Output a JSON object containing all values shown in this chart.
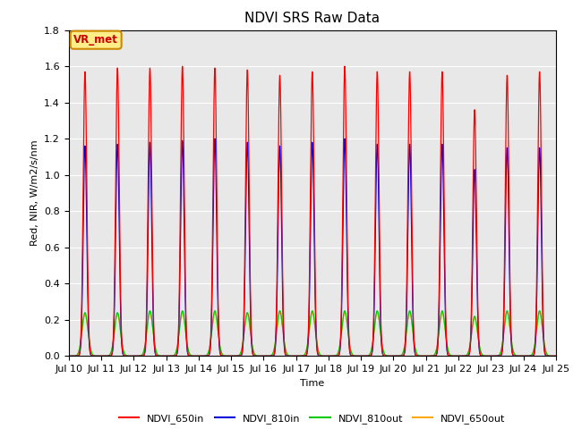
{
  "title": "NDVI SRS Raw Data",
  "xlabel": "Time",
  "ylabel": "Red, NIR, W/m2/s/nm",
  "ylim": [
    0.0,
    1.8
  ],
  "xlim": [
    0,
    15
  ],
  "x_tick_labels": [
    "Jul 10",
    "Jul 11",
    "Jul 12",
    "Jul 13",
    "Jul 14",
    "Jul 15",
    "Jul 16",
    "Jul 17",
    "Jul 18",
    "Jul 19",
    "Jul 20",
    "Jul 21",
    "Jul 22",
    "Jul 23",
    "Jul 24",
    "Jul 25"
  ],
  "annotation_text": "VR_met",
  "background_color": "#e8e8e8",
  "peaks_650in": [
    1.57,
    1.59,
    1.59,
    1.6,
    1.59,
    1.58,
    1.55,
    1.57,
    1.6,
    1.57,
    1.57,
    1.57,
    1.36,
    1.55,
    1.57
  ],
  "peaks_810in": [
    1.16,
    1.17,
    1.18,
    1.19,
    1.2,
    1.18,
    1.16,
    1.18,
    1.2,
    1.17,
    1.17,
    1.17,
    1.03,
    1.15,
    1.15
  ],
  "peaks_810out": [
    0.24,
    0.24,
    0.25,
    0.25,
    0.25,
    0.24,
    0.25,
    0.25,
    0.25,
    0.25,
    0.25,
    0.25,
    0.22,
    0.25,
    0.25
  ],
  "peaks_650out": [
    0.23,
    0.23,
    0.24,
    0.24,
    0.24,
    0.23,
    0.24,
    0.24,
    0.24,
    0.24,
    0.24,
    0.24,
    0.21,
    0.24,
    0.24
  ],
  "sigma_tall": 0.055,
  "sigma_small": 0.09,
  "title_fontsize": 11,
  "label_fontsize": 8,
  "tick_fontsize": 8
}
